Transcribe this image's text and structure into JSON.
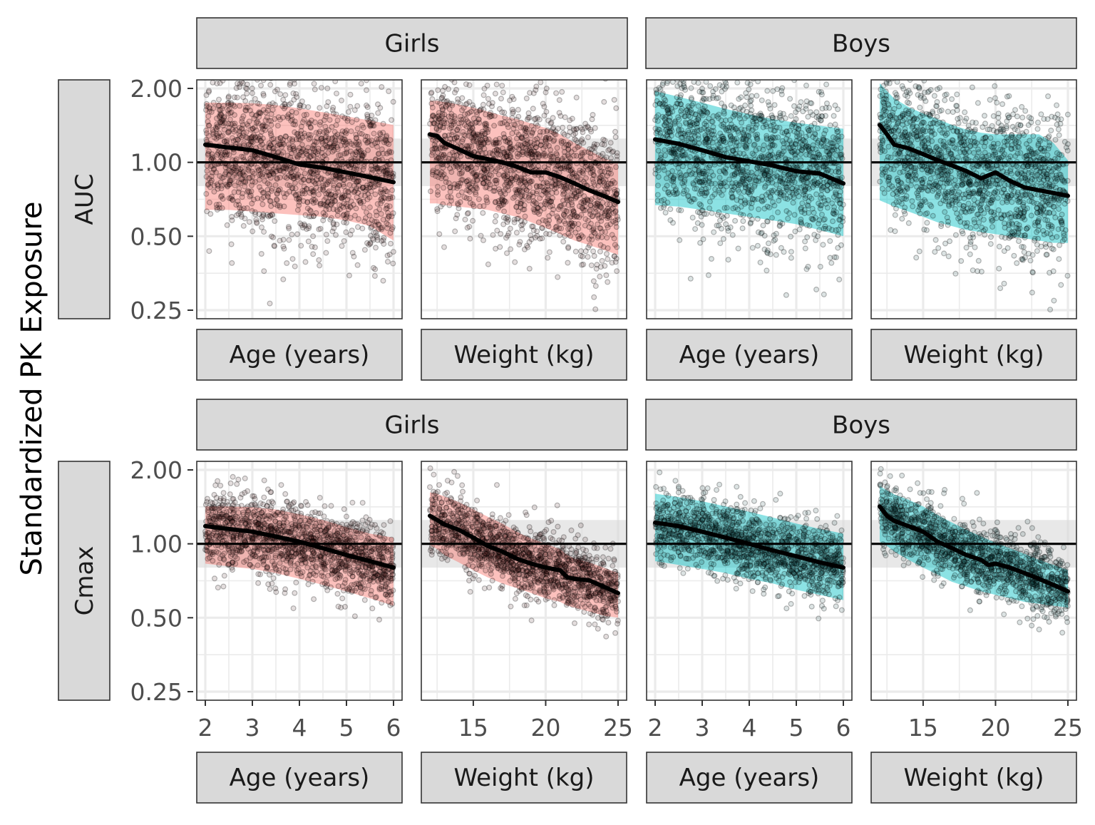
{
  "y_axis_title": "Standardized PK Exposure",
  "colors": {
    "girls_ribbon": "#f8766d",
    "girls_points": "#3b0f0f",
    "boys_ribbon": "#00bfc4",
    "boys_points": "#063c3c",
    "reference_band": "#d9d9d9",
    "median_line": "#000000"
  },
  "chart_data": {
    "type": "scatter",
    "layout": "faceted grid: 2 metrics x 2 sexes x 2 covariates",
    "y_scale": "log",
    "ylim": [
      0.25,
      2.0
    ],
    "y_ticks": [
      "0.25",
      "0.50",
      "1.00",
      "2.00"
    ],
    "reference_line": 1.0,
    "reference_band": [
      0.8,
      1.25
    ],
    "covariates": [
      {
        "label": "Age (years)",
        "xlim": [
          2,
          6
        ],
        "ticks": [
          "2",
          "3",
          "4",
          "5",
          "6"
        ]
      },
      {
        "label": "Weight (kg)",
        "xlim": [
          12,
          25
        ],
        "ticks": [
          "15",
          "20",
          "25"
        ]
      }
    ],
    "sexes": [
      "Girls",
      "Boys"
    ],
    "metrics": [
      {
        "label": "AUC",
        "panels": [
          {
            "sex": "Girls",
            "covariate": "Age (years)",
            "median": {
              "x": [
                2,
                2.5,
                3,
                3.5,
                4,
                4.5,
                5,
                5.5,
                6
              ],
              "y": [
                1.18,
                1.15,
                1.12,
                1.05,
                0.98,
                0.95,
                0.91,
                0.87,
                0.83
              ]
            },
            "ribbon_lower": [
              0.64,
              0.64,
              0.63,
              0.62,
              0.61,
              0.6,
              0.58,
              0.55,
              0.48
            ],
            "ribbon_upper": [
              1.75,
              1.75,
              1.74,
              1.71,
              1.66,
              1.6,
              1.54,
              1.48,
              1.42
            ],
            "point_spread": 0.36,
            "point_count": 1500
          },
          {
            "sex": "Girls",
            "covariate": "Weight (kg)",
            "median": {
              "x": [
                12,
                12.5,
                13,
                14,
                15,
                16,
                17,
                18,
                19,
                20,
                21,
                22,
                23,
                24,
                25
              ],
              "y": [
                1.3,
                1.28,
                1.2,
                1.13,
                1.06,
                1.03,
                1.0,
                0.96,
                0.91,
                0.91,
                0.87,
                0.82,
                0.77,
                0.73,
                0.69
              ]
            },
            "ribbon_lower": [
              0.68,
              0.68,
              0.67,
              0.66,
              0.65,
              0.64,
              0.62,
              0.6,
              0.57,
              0.54,
              0.51,
              0.48,
              0.46,
              0.44,
              0.42
            ],
            "ribbon_upper": [
              1.78,
              1.78,
              1.76,
              1.72,
              1.67,
              1.61,
              1.55,
              1.5,
              1.44,
              1.38,
              1.3,
              1.2,
              1.12,
              1.04,
              0.99
            ],
            "point_spread": 0.34,
            "point_count": 1500
          },
          {
            "sex": "Boys",
            "covariate": "Age (years)",
            "median": {
              "x": [
                2,
                2.5,
                3,
                3.5,
                4,
                4.5,
                5,
                5.5,
                6
              ],
              "y": [
                1.24,
                1.19,
                1.12,
                1.05,
                1.01,
                0.97,
                0.92,
                0.9,
                0.82
              ]
            },
            "ribbon_lower": [
              0.67,
              0.66,
              0.64,
              0.62,
              0.6,
              0.58,
              0.56,
              0.53,
              0.5
            ],
            "ribbon_upper": [
              1.95,
              1.85,
              1.75,
              1.65,
              1.57,
              1.5,
              1.45,
              1.41,
              1.37
            ],
            "point_spread": 0.36,
            "point_count": 1500
          },
          {
            "sex": "Boys",
            "covariate": "Weight (kg)",
            "median": {
              "x": [
                12,
                12.5,
                13,
                14,
                15,
                16,
                17,
                18,
                19,
                20,
                21,
                22,
                23,
                24,
                25
              ],
              "y": [
                1.42,
                1.3,
                1.18,
                1.14,
                1.08,
                1.02,
                0.97,
                0.92,
                0.86,
                0.91,
                0.84,
                0.79,
                0.77,
                0.75,
                0.73
              ]
            },
            "ribbon_lower": [
              0.7,
              0.68,
              0.66,
              0.63,
              0.6,
              0.57,
              0.55,
              0.53,
              0.52,
              0.51,
              0.5,
              0.49,
              0.48,
              0.47,
              0.47
            ],
            "ribbon_upper": [
              2.1,
              1.95,
              1.82,
              1.68,
              1.58,
              1.5,
              1.42,
              1.36,
              1.32,
              1.3,
              1.3,
              1.3,
              1.3,
              1.2,
              1.02
            ],
            "point_spread": 0.34,
            "point_count": 1500
          }
        ]
      },
      {
        "label": "Cmax",
        "panels": [
          {
            "sex": "Girls",
            "covariate": "Age (years)",
            "median": {
              "x": [
                2,
                2.5,
                3,
                3.5,
                4,
                4.5,
                5,
                5.5,
                6
              ],
              "y": [
                1.18,
                1.15,
                1.12,
                1.07,
                1.02,
                0.96,
                0.9,
                0.85,
                0.8
              ]
            },
            "ribbon_lower": [
              0.83,
              0.81,
              0.79,
              0.76,
              0.72,
              0.68,
              0.64,
              0.6,
              0.56
            ],
            "ribbon_upper": [
              1.42,
              1.42,
              1.41,
              1.38,
              1.32,
              1.25,
              1.17,
              1.1,
              1.06
            ],
            "point_spread": 0.18,
            "point_count": 1400
          },
          {
            "sex": "Girls",
            "covariate": "Weight (kg)",
            "median": {
              "x": [
                12,
                12.5,
                13,
                14,
                15,
                16,
                17,
                18,
                19,
                20,
                21,
                21.5,
                22,
                23,
                24,
                25
              ],
              "y": [
                1.3,
                1.25,
                1.2,
                1.14,
                1.06,
                0.98,
                0.93,
                0.87,
                0.83,
                0.8,
                0.78,
                0.73,
                0.72,
                0.71,
                0.67,
                0.63
              ]
            },
            "ribbon_lower": [
              0.99,
              0.95,
              0.9,
              0.84,
              0.78,
              0.73,
              0.69,
              0.66,
              0.63,
              0.6,
              0.58,
              0.56,
              0.55,
              0.53,
              0.51,
              0.5
            ],
            "ribbon_upper": [
              1.62,
              1.6,
              1.56,
              1.48,
              1.38,
              1.29,
              1.21,
              1.12,
              1.05,
              1.0,
              0.95,
              0.9,
              0.87,
              0.84,
              0.8,
              0.76
            ],
            "point_spread": 0.16,
            "point_count": 1400
          },
          {
            "sex": "Boys",
            "covariate": "Age (years)",
            "median": {
              "x": [
                2,
                2.5,
                3,
                3.5,
                4,
                4.5,
                5,
                5.5,
                6
              ],
              "y": [
                1.22,
                1.18,
                1.12,
                1.06,
                1.0,
                0.94,
                0.89,
                0.84,
                0.8
              ]
            },
            "ribbon_lower": [
              0.85,
              0.82,
              0.79,
              0.76,
              0.72,
              0.69,
              0.65,
              0.62,
              0.59
            ],
            "ribbon_upper": [
              1.6,
              1.55,
              1.49,
              1.42,
              1.35,
              1.28,
              1.21,
              1.15,
              1.1
            ],
            "point_spread": 0.17,
            "point_count": 1400
          },
          {
            "sex": "Boys",
            "covariate": "Weight (kg)",
            "median": {
              "x": [
                12,
                12.5,
                13,
                14,
                15,
                16,
                17,
                18,
                19,
                19.5,
                20,
                21,
                22,
                23,
                24,
                25
              ],
              "y": [
                1.42,
                1.3,
                1.24,
                1.18,
                1.12,
                1.02,
                0.96,
                0.9,
                0.86,
                0.82,
                0.83,
                0.8,
                0.76,
                0.72,
                0.68,
                0.64
              ]
            },
            "ribbon_lower": [
              1.02,
              0.98,
              0.93,
              0.86,
              0.8,
              0.75,
              0.7,
              0.67,
              0.64,
              0.63,
              0.62,
              0.6,
              0.58,
              0.57,
              0.56,
              0.55
            ],
            "ribbon_upper": [
              1.72,
              1.65,
              1.59,
              1.51,
              1.42,
              1.31,
              1.22,
              1.14,
              1.07,
              1.04,
              1.01,
              0.96,
              0.91,
              0.86,
              0.82,
              0.78
            ],
            "point_spread": 0.16,
            "point_count": 1400
          }
        ]
      }
    ]
  }
}
